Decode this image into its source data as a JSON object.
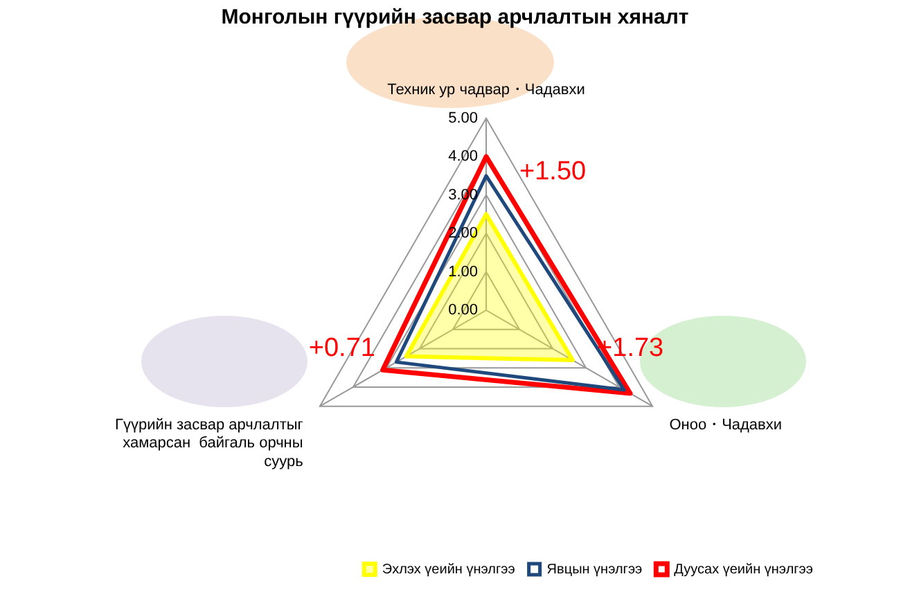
{
  "chart_data": {
    "type": "radar",
    "title": "Монголын гүүрийн засвар арчлалтын хяналт",
    "categories": [
      "Техник ур чадвар・Чадавхи",
      "Оноо・Чадавхи",
      "Гүүрийн засвар арчлалтыг хамарсан  байгаль орчны суурь"
    ],
    "series": [
      {
        "name": "Эхлэх үеийн үнэлгээ",
        "color": "#ffff00",
        "values": [
          2.5,
          2.6,
          2.4
        ]
      },
      {
        "name": "Явцын үнэлгээ",
        "color": "#1f497d",
        "values": [
          3.5,
          4.15,
          2.7
        ]
      },
      {
        "name": "Дуусах үеийн үнэлгээ",
        "color": "#ff0000",
        "values": [
          4.0,
          4.33,
          3.11
        ]
      }
    ],
    "ylim": [
      0,
      5
    ],
    "yticks": [
      {
        "value": 0,
        "label": "0.00"
      },
      {
        "value": 1,
        "label": "1.00"
      },
      {
        "value": 2,
        "label": "2.00"
      },
      {
        "value": 3,
        "label": "3.00"
      },
      {
        "value": 4,
        "label": "4.00"
      },
      {
        "value": 5,
        "label": "5.00"
      }
    ],
    "annotations": [
      "+1.50",
      "+1.73",
      "+0.71"
    ],
    "legend": "bottom right",
    "marker": "none",
    "grid": true
  }
}
